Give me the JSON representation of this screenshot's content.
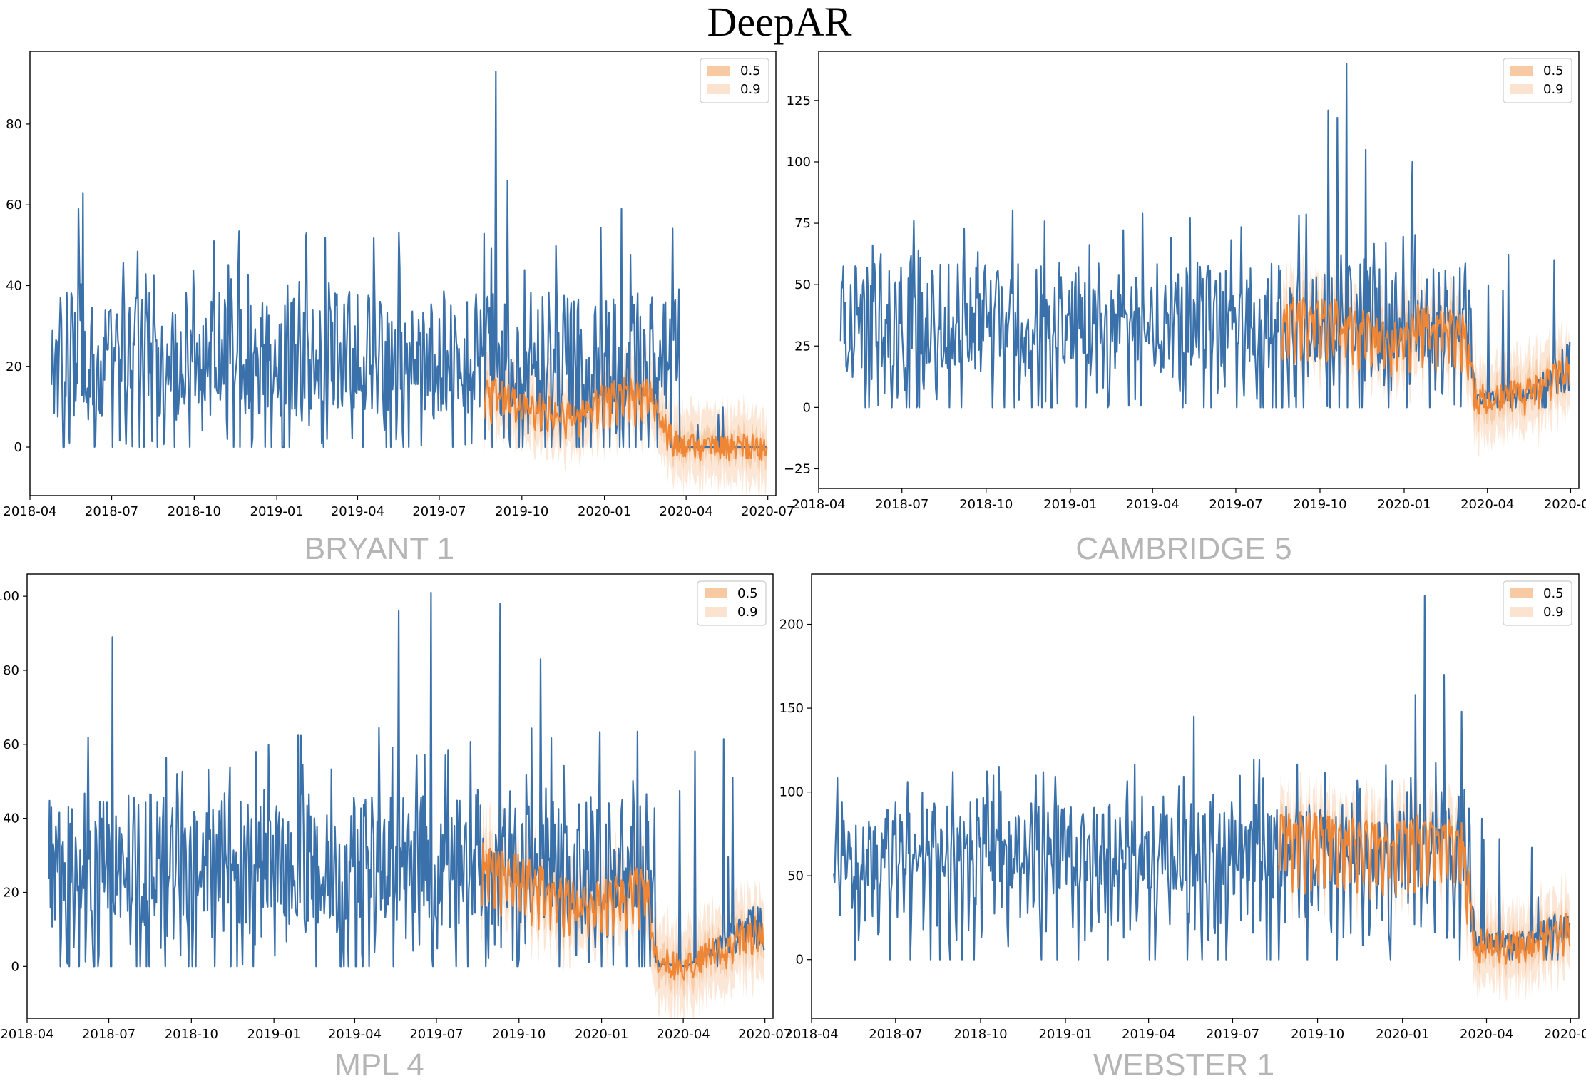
{
  "figure": {
    "title": "DeepAR"
  },
  "colors": {
    "history": "#3a71aa",
    "median": "#ef8636",
    "band50": "#f7caa4",
    "band90": "#fbe3d0",
    "panel_name": "#b5b5b5"
  },
  "chart_data": [
    {
      "type": "line",
      "title": "BRYANT 1",
      "x_range": [
        "2018-04-01",
        "2020-07-10"
      ],
      "ylim": [
        -12,
        98
      ],
      "y_ticks": [
        0,
        20,
        40,
        60,
        80
      ],
      "x_ticks": [
        "2018-04",
        "2018-07",
        "2018-10",
        "2019-01",
        "2019-04",
        "2019-07",
        "2019-10",
        "2020-01",
        "2020-04",
        "2020-07"
      ],
      "legend": {
        "position": "top-right",
        "entries": [
          "0.5",
          "0.9"
        ]
      },
      "history": {
        "start": "2018-04-25",
        "end": "2020-06-30",
        "base": 21,
        "amp": 13,
        "peaks": [
          [
            "2018-05-30",
            63
          ],
          [
            "2018-05-25",
            59
          ],
          [
            "2019-09-02",
            93
          ],
          [
            "2019-09-15",
            66
          ],
          [
            "2020-01-20",
            59
          ]
        ]
      },
      "zero_after": "2020-03-25",
      "forecast": {
        "start": "2019-08-20",
        "end": "2020-06-30",
        "points": [
          [
            "2019-08-20",
            14
          ],
          [
            "2019-09-20",
            11
          ],
          [
            "2019-10-15",
            10
          ],
          [
            "2019-11-20",
            7
          ],
          [
            "2019-12-15",
            10
          ],
          [
            "2020-01-15",
            13
          ],
          [
            "2020-02-20",
            13
          ],
          [
            "2020-03-15",
            2
          ],
          [
            "2020-03-25",
            0
          ],
          [
            "2020-06-30",
            0
          ]
        ],
        "band50": 3,
        "band90": 8
      }
    },
    {
      "type": "line",
      "title": "CAMBRIDGE 5",
      "x_range": [
        "2018-04-01",
        "2020-07-10"
      ],
      "ylim": [
        -33,
        145
      ],
      "y_ticks": [
        -25,
        0,
        25,
        50,
        75,
        100,
        125
      ],
      "x_ticks": [
        "2018-04",
        "2018-07",
        "2018-10",
        "2019-01",
        "2019-04",
        "2019-07",
        "2019-10",
        "2020-01",
        "2020-04",
        "2020-07"
      ],
      "legend": {
        "position": "top-right",
        "entries": [
          "0.5",
          "0.9"
        ]
      },
      "history": {
        "start": "2018-04-25",
        "end": "2020-06-30",
        "base": 34,
        "amp": 18,
        "peaks": [
          [
            "2019-10-30",
            140
          ],
          [
            "2019-10-10",
            121
          ],
          [
            "2019-10-20",
            118
          ],
          [
            "2020-01-10",
            100
          ],
          [
            "2019-11-20",
            105
          ]
        ]
      },
      "low_after": "2020-03-15",
      "forecast": {
        "start": "2019-08-20",
        "end": "2020-06-30",
        "points": [
          [
            "2019-08-20",
            38
          ],
          [
            "2019-09-10",
            36
          ],
          [
            "2019-10-15",
            35
          ],
          [
            "2019-11-20",
            30
          ],
          [
            "2019-12-15",
            25
          ],
          [
            "2020-01-15",
            33
          ],
          [
            "2020-03-05",
            32
          ],
          [
            "2020-03-20",
            3
          ],
          [
            "2020-05-15",
            5
          ],
          [
            "2020-06-30",
            15
          ]
        ],
        "band50": 6,
        "band90": 14
      }
    },
    {
      "type": "line",
      "title": "MPL 4",
      "x_range": [
        "2018-04-01",
        "2020-07-10"
      ],
      "ylim": [
        -14,
        106
      ],
      "y_ticks": [
        0,
        20,
        40,
        60,
        80,
        100
      ],
      "x_ticks": [
        "2018-04",
        "2018-07",
        "2018-10",
        "2019-01",
        "2019-04",
        "2019-07",
        "2019-10",
        "2020-01",
        "2020-04",
        "2020-07"
      ],
      "legend": {
        "position": "top-right",
        "entries": [
          "0.5",
          "0.9"
        ]
      },
      "history": {
        "start": "2018-04-25",
        "end": "2020-06-30",
        "base": 26,
        "amp": 15,
        "peaks": [
          [
            "2018-07-05",
            89
          ],
          [
            "2019-06-25",
            101
          ],
          [
            "2019-05-20",
            96
          ],
          [
            "2019-09-10",
            98
          ],
          [
            "2019-10-25",
            83
          ]
        ]
      },
      "low_after": "2020-03-01",
      "forecast": {
        "start": "2019-08-20",
        "end": "2020-06-30",
        "points": [
          [
            "2019-08-20",
            27
          ],
          [
            "2019-10-01",
            24
          ],
          [
            "2019-11-10",
            20
          ],
          [
            "2019-12-10",
            16
          ],
          [
            "2020-02-20",
            22
          ],
          [
            "2020-03-01",
            1
          ],
          [
            "2020-04-05",
            0
          ],
          [
            "2020-05-20",
            6
          ],
          [
            "2020-06-30",
            10
          ]
        ],
        "band50": 4,
        "band90": 10
      }
    },
    {
      "type": "line",
      "title": "WEBSTER 1",
      "x_range": [
        "2018-04-01",
        "2020-07-10"
      ],
      "ylim": [
        -35,
        230
      ],
      "y_ticks": [
        0,
        50,
        100,
        150,
        200
      ],
      "x_ticks": [
        "2018-04",
        "2018-07",
        "2018-10",
        "2019-01",
        "2019-04",
        "2019-07",
        "2019-10",
        "2020-01",
        "2020-04",
        "2020-07"
      ],
      "legend": {
        "position": "top-right",
        "entries": [
          "0.5",
          "0.9"
        ]
      },
      "history": {
        "start": "2018-04-25",
        "end": "2020-06-30",
        "base": 62,
        "amp": 22,
        "peaks": [
          [
            "2020-01-25",
            217
          ],
          [
            "2020-02-15",
            170
          ],
          [
            "2020-01-15",
            158
          ],
          [
            "2019-05-20",
            145
          ],
          [
            "2020-03-05",
            148
          ]
        ]
      },
      "low_after": "2020-03-15",
      "forecast": {
        "start": "2019-08-20",
        "end": "2020-06-30",
        "points": [
          [
            "2019-08-20",
            75
          ],
          [
            "2019-10-15",
            72
          ],
          [
            "2019-12-01",
            68
          ],
          [
            "2020-01-20",
            72
          ],
          [
            "2020-03-05",
            70
          ],
          [
            "2020-03-20",
            10
          ],
          [
            "2020-05-01",
            8
          ],
          [
            "2020-06-30",
            18
          ]
        ],
        "band50": 8,
        "band90": 20
      }
    }
  ]
}
